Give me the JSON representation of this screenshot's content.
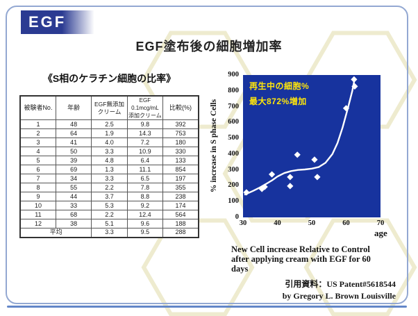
{
  "slide": {
    "logo": "EGF",
    "title": "EGF塗布後の細胞増加率"
  },
  "table_section": {
    "caption": "《S相のケラチン細胞の比率》",
    "headers": [
      "被験者No.",
      "年齢",
      "EGF無添加\nクリーム",
      "EGF 0.1mcg/mL\n添加クリーム",
      "比較(%)"
    ],
    "rows": [
      [
        "1",
        "48",
        "2.5",
        "9.8",
        "392"
      ],
      [
        "2",
        "64",
        "1.9",
        "14.3",
        "753"
      ],
      [
        "3",
        "41",
        "4.0",
        "7.2",
        "180"
      ],
      [
        "4",
        "50",
        "3.3",
        "10.9",
        "330"
      ],
      [
        "5",
        "39",
        "4.8",
        "6.4",
        "133"
      ],
      [
        "6",
        "69",
        "1.3",
        "11.1",
        "854"
      ],
      [
        "7",
        "34",
        "3.3",
        "6.5",
        "197"
      ],
      [
        "8",
        "55",
        "2.2",
        "7.8",
        "355"
      ],
      [
        "9",
        "44",
        "3.7",
        "8.8",
        "238"
      ],
      [
        "10",
        "33",
        "5.3",
        "9.2",
        "174"
      ],
      [
        "11",
        "68",
        "2.2",
        "12.4",
        "564"
      ],
      [
        "12",
        "38",
        "5.1",
        "9.6",
        "188"
      ]
    ],
    "footer": {
      "label": "平均",
      "values": [
        "3.3",
        "9.5",
        "288"
      ]
    }
  },
  "chart_data": {
    "type": "scatter",
    "annotation_lines": [
      "再生中の細胞%",
      "最大872%増加"
    ],
    "ylabel": "% increase in S phase Cells",
    "xlabel": "age",
    "xlim": [
      30,
      70
    ],
    "ylim": [
      0,
      900
    ],
    "x_ticks": [
      30,
      40,
      50,
      60,
      70
    ],
    "y_ticks": [
      0,
      100,
      200,
      300,
      400,
      500,
      600,
      700,
      800,
      900
    ],
    "points": [
      [
        31,
        158
      ],
      [
        35.5,
        180
      ],
      [
        36.3,
        193
      ],
      [
        38.4,
        272
      ],
      [
        43.7,
        255
      ],
      [
        43.7,
        198
      ],
      [
        45.8,
        396
      ],
      [
        50.8,
        365
      ],
      [
        51.6,
        255
      ],
      [
        60,
        690
      ],
      [
        62.3,
        872
      ],
      [
        62.5,
        828
      ]
    ],
    "trend": [
      [
        30.6,
        145
      ],
      [
        33,
        168
      ],
      [
        35,
        190
      ],
      [
        37,
        215
      ],
      [
        38.5,
        235
      ],
      [
        40,
        258
      ],
      [
        42,
        280
      ],
      [
        44,
        293
      ],
      [
        46,
        300
      ],
      [
        48,
        303
      ],
      [
        50,
        308
      ],
      [
        52,
        318
      ],
      [
        54,
        345
      ],
      [
        56,
        400
      ],
      [
        57.5,
        470
      ],
      [
        59,
        570
      ],
      [
        60.5,
        690
      ],
      [
        61.8,
        800
      ],
      [
        62.5,
        880
      ]
    ],
    "grid": false,
    "plot_bg": "#17339e",
    "point_color": "#ffffff",
    "line_color": "#ffffff",
    "annotation_color": "#ffe60a"
  },
  "caption": {
    "lines": [
      "New Cell increase Relative to Control",
      "after applying cream with EGF for 60",
      "days"
    ]
  },
  "citation": {
    "line1": "引用資料：US Patent#5618544",
    "line2": "by Gregory L. Brown Louisville"
  }
}
